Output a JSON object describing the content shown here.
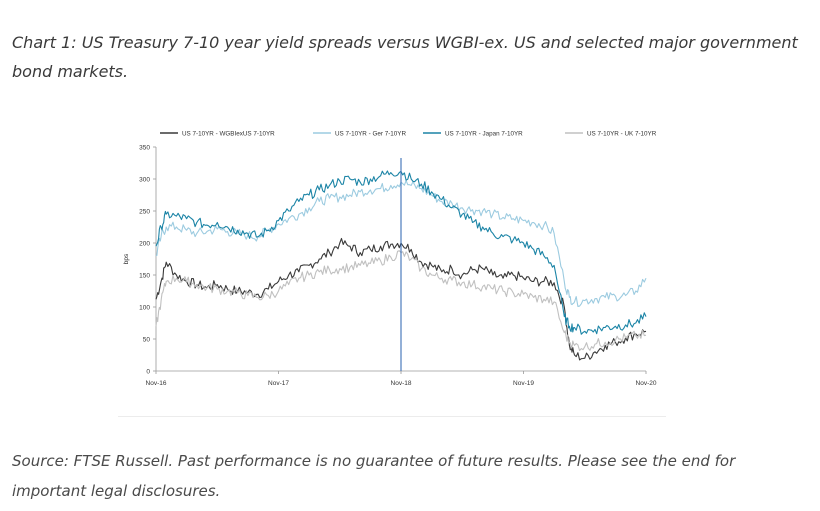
{
  "page": {
    "caption": "Chart 1: US Treasury 7-10 year yield spreads versus WGBI-ex. US and selected major government bond markets.",
    "source": "Source: FTSE Russell. Past performance is no guarantee of future results. Please see the end for important legal disclosures."
  },
  "chart_data": {
    "type": "line",
    "title": "",
    "xlabel": "",
    "ylabel": "bps",
    "ylim": [
      0,
      350
    ],
    "yticks": [
      0,
      50,
      100,
      150,
      200,
      250,
      300,
      350
    ],
    "xlim": [
      0,
      48
    ],
    "xticks": [
      {
        "x": 0,
        "label": "Nov-16"
      },
      {
        "x": 12,
        "label": "Nov-17"
      },
      {
        "x": 24,
        "label": "Nov-18"
      },
      {
        "x": 36,
        "label": "Nov-19"
      },
      {
        "x": 48,
        "label": "Nov-20"
      }
    ],
    "x_unit": "months since Nov-16",
    "grid": false,
    "legend": "top",
    "vline": {
      "x": 24,
      "color": "#3b6fb6"
    },
    "x": [
      0,
      0.5,
      1,
      2,
      3,
      4,
      5,
      6,
      7,
      8,
      9,
      10,
      11,
      12,
      13,
      14,
      15,
      16,
      17,
      18,
      19,
      20,
      21,
      22,
      23,
      24,
      25,
      26,
      27,
      28,
      29,
      30,
      31,
      32,
      33,
      34,
      35,
      36,
      37,
      38,
      39,
      40,
      40.5,
      41,
      42,
      43,
      44,
      45,
      46,
      47,
      48
    ],
    "series": [
      {
        "name": "US 7-10YR - WGBIexUS 7-10YR",
        "color": "#3a3a3a",
        "values": [
          112,
          140,
          170,
          150,
          140,
          135,
          130,
          135,
          128,
          125,
          123,
          120,
          128,
          140,
          150,
          155,
          165,
          175,
          185,
          200,
          195,
          185,
          190,
          195,
          198,
          200,
          190,
          170,
          165,
          155,
          160,
          150,
          158,
          160,
          150,
          145,
          150,
          145,
          140,
          140,
          138,
          100,
          40,
          25,
          20,
          30,
          40,
          45,
          52,
          58,
          62
        ]
      },
      {
        "name": "US 7-10YR - Ger 7-10YR",
        "color": "#9ccbe0",
        "values": [
          180,
          210,
          225,
          225,
          220,
          215,
          218,
          222,
          218,
          215,
          212,
          210,
          220,
          230,
          238,
          245,
          255,
          265,
          270,
          272,
          275,
          280,
          283,
          285,
          290,
          295,
          290,
          285,
          275,
          265,
          262,
          255,
          252,
          250,
          245,
          240,
          238,
          235,
          232,
          228,
          215,
          140,
          115,
          108,
          110,
          113,
          115,
          117,
          118,
          125,
          145
        ]
      },
      {
        "name": "US 7-10YR - Japan 7-10YR",
        "color": "#1b84a6",
        "values": [
          195,
          225,
          245,
          242,
          238,
          232,
          228,
          232,
          225,
          220,
          215,
          210,
          220,
          235,
          250,
          265,
          275,
          283,
          290,
          297,
          300,
          295,
          300,
          305,
          310,
          312,
          300,
          292,
          280,
          268,
          255,
          245,
          232,
          225,
          215,
          210,
          205,
          200,
          190,
          180,
          165,
          85,
          70,
          68,
          62,
          65,
          68,
          70,
          72,
          75,
          85
        ]
      },
      {
        "name": "US 7-10YR - UK 7-10YR",
        "color": "#c0c0c0",
        "values": [
          70,
          110,
          140,
          145,
          140,
          135,
          130,
          128,
          125,
          122,
          118,
          115,
          118,
          125,
          135,
          145,
          150,
          155,
          158,
          160,
          162,
          165,
          168,
          172,
          178,
          185,
          175,
          160,
          150,
          145,
          142,
          138,
          135,
          132,
          128,
          125,
          122,
          120,
          115,
          112,
          108,
          60,
          45,
          40,
          38,
          42,
          45,
          48,
          52,
          55,
          56
        ]
      }
    ]
  }
}
